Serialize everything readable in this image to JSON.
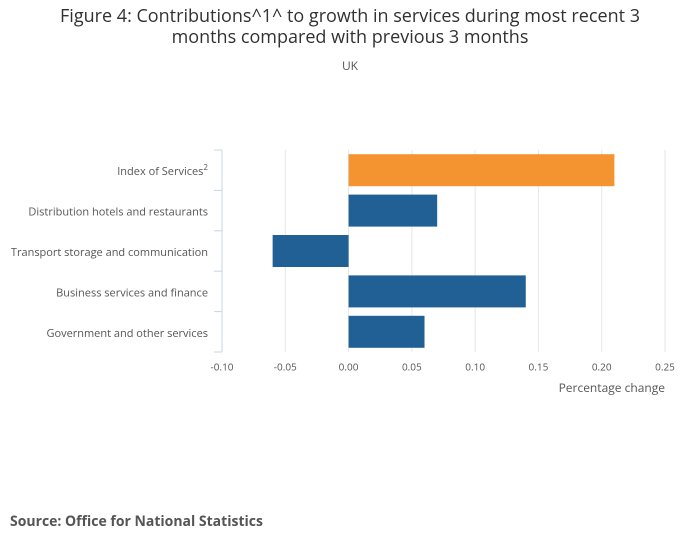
{
  "chart_data": {
    "type": "bar",
    "orientation": "horizontal",
    "title": "Figure 4: Contributions^1^ to growth in services during most recent 3 months compared with previous 3 months",
    "subtitle": "UK",
    "source": "Source: Office for National Statistics",
    "x_label": "Percentage change",
    "categories": [
      "Index of Services",
      "Distribution hotels and restaurants",
      "Transport storage and communication",
      "Business services and finance",
      "Government and other services"
    ],
    "category_superscripts": [
      "2",
      null,
      null,
      null,
      null
    ],
    "values": [
      0.21,
      0.07,
      -0.06,
      0.14,
      0.06
    ],
    "colors": [
      "#f39431",
      "#206095",
      "#206095",
      "#206095",
      "#206095"
    ],
    "xlim": [
      -0.1,
      0.25
    ],
    "xticks": [
      {
        "value": -0.1,
        "label": "-0.10"
      },
      {
        "value": -0.05,
        "label": "-0.05"
      },
      {
        "value": 0,
        "label": "0.00"
      },
      {
        "value": 0.05,
        "label": "0.05"
      },
      {
        "value": 0.1,
        "label": "0.10"
      },
      {
        "value": 0.15,
        "label": "0.15"
      },
      {
        "value": 0.2,
        "label": "0.20"
      },
      {
        "value": 0.25,
        "label": "0.25"
      }
    ],
    "grid": true
  }
}
